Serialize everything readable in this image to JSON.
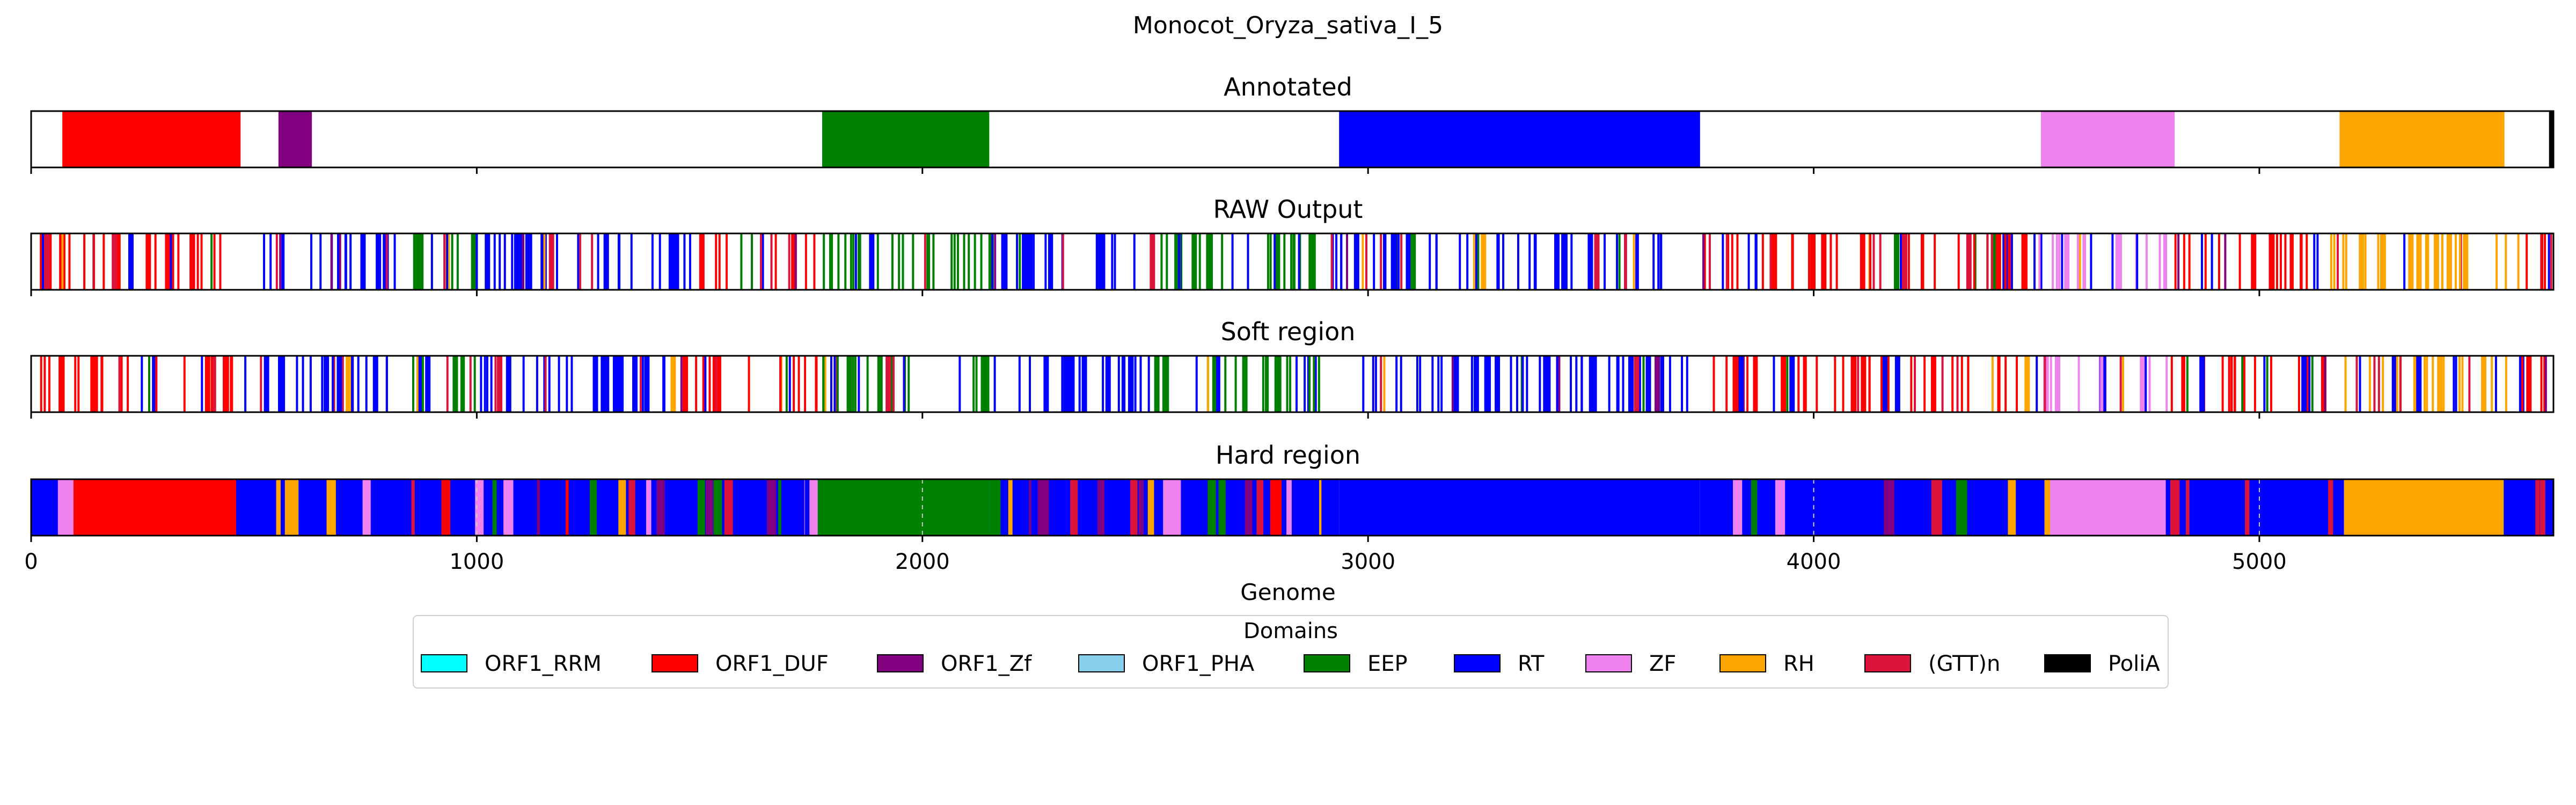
{
  "chart_data": {
    "type": "bar",
    "title": "Monocot_Oryza_sativa_I_5",
    "xlabel": "Genome",
    "xlim": [
      0,
      5660
    ],
    "xticks": [
      0,
      1000,
      2000,
      3000,
      4000,
      5000
    ],
    "xtick_labels": [
      "0",
      "1000",
      "2000",
      "3000",
      "4000",
      "5000"
    ],
    "grid": false,
    "legend": {
      "title": "Domains",
      "placement": "bottom-center",
      "items": [
        {
          "name": "ORF1_RRM",
          "color": "#00ffff"
        },
        {
          "name": "ORF1_DUF",
          "color": "#ff0000"
        },
        {
          "name": "ORF1_Zf",
          "color": "#800080"
        },
        {
          "name": "ORF1_PHA",
          "color": "#87ceeb"
        },
        {
          "name": "EEP",
          "color": "#008000"
        },
        {
          "name": "RT",
          "color": "#0000ff"
        },
        {
          "name": "ZF",
          "color": "#ee82ee"
        },
        {
          "name": "RH",
          "color": "#ffa500"
        },
        {
          "name": "(GTT)n",
          "color": "#dc143c"
        },
        {
          "name": "PoliA",
          "color": "#000000"
        }
      ]
    },
    "tracks": [
      {
        "title": "Annotated",
        "mode": "segments",
        "segments": [
          {
            "domain": "ORF1_DUF",
            "start": 70,
            "end": 470
          },
          {
            "domain": "ORF1_Zf",
            "start": 555,
            "end": 630
          },
          {
            "domain": "EEP",
            "start": 1775,
            "end": 2150
          },
          {
            "domain": "RT",
            "start": 2935,
            "end": 3745
          },
          {
            "domain": "ZF",
            "start": 4510,
            "end": 4810
          },
          {
            "domain": "RH",
            "start": 5180,
            "end": 5550
          },
          {
            "domain": "PoliA",
            "start": 5650,
            "end": 5660
          }
        ]
      },
      {
        "title": "RAW Output",
        "mode": "lines",
        "segments": [
          {
            "domain": "ORF1_DUF",
            "start": 10,
            "end": 470
          },
          {
            "domain": "RT",
            "start": 470,
            "end": 810
          },
          {
            "domain": "EEP",
            "start": 810,
            "end": 1000
          },
          {
            "domain": "RT",
            "start": 1000,
            "end": 1460
          },
          {
            "domain": "ORF1_DUF",
            "start": 1460,
            "end": 1760
          },
          {
            "domain": "EEP",
            "start": 1760,
            "end": 2150
          },
          {
            "domain": "RT",
            "start": 2150,
            "end": 2520
          },
          {
            "domain": "EEP",
            "start": 2520,
            "end": 2910
          },
          {
            "domain": "RT",
            "start": 2910,
            "end": 3750
          },
          {
            "domain": "ORF1_DUF",
            "start": 3750,
            "end": 4500
          },
          {
            "domain": "ZF",
            "start": 4500,
            "end": 4800
          },
          {
            "domain": "ORF1_DUF",
            "start": 4800,
            "end": 5150
          },
          {
            "domain": "RH",
            "start": 5150,
            "end": 5560
          },
          {
            "domain": "ORF1_DUF",
            "start": 5560,
            "end": 5660
          }
        ]
      },
      {
        "title": "Soft region",
        "mode": "lines",
        "segments": [
          {
            "domain": "ORF1_DUF",
            "start": 10,
            "end": 470
          },
          {
            "domain": "RT",
            "start": 470,
            "end": 810
          },
          {
            "domain": "EEP",
            "start": 810,
            "end": 1000
          },
          {
            "domain": "RT",
            "start": 1000,
            "end": 1460
          },
          {
            "domain": "ORF1_DUF",
            "start": 1460,
            "end": 1760
          },
          {
            "domain": "EEP",
            "start": 1760,
            "end": 2150
          },
          {
            "domain": "RT",
            "start": 2150,
            "end": 2520
          },
          {
            "domain": "EEP",
            "start": 2520,
            "end": 2910
          },
          {
            "domain": "RT",
            "start": 2910,
            "end": 3750
          },
          {
            "domain": "ORF1_DUF",
            "start": 3750,
            "end": 4500
          },
          {
            "domain": "ZF",
            "start": 4500,
            "end": 4800
          },
          {
            "domain": "ORF1_DUF",
            "start": 4800,
            "end": 5150
          },
          {
            "domain": "RH",
            "start": 5150,
            "end": 5560
          },
          {
            "domain": "ORF1_DUF",
            "start": 5560,
            "end": 5660
          }
        ]
      },
      {
        "title": "Hard region",
        "mode": "segments",
        "segments": [
          {
            "domain": "RT",
            "start": 0,
            "end": 90
          },
          {
            "domain": "ZF",
            "start": 60,
            "end": 95
          },
          {
            "domain": "ORF1_DUF",
            "start": 95,
            "end": 460
          },
          {
            "domain": "RT",
            "start": 460,
            "end": 550
          },
          {
            "domain": "RH",
            "start": 550,
            "end": 600
          },
          {
            "domain": "RT",
            "start": 600,
            "end": 1000
          },
          {
            "domain": "RT",
            "start": 1000,
            "end": 1760
          },
          {
            "domain": "ZF",
            "start": 1735,
            "end": 1765
          },
          {
            "domain": "EEP",
            "start": 1765,
            "end": 2150
          },
          {
            "domain": "RT",
            "start": 2150,
            "end": 2600
          },
          {
            "domain": "ZF",
            "start": 2540,
            "end": 2580
          },
          {
            "domain": "RT",
            "start": 2600,
            "end": 2935
          },
          {
            "domain": "RT",
            "start": 2935,
            "end": 3745
          },
          {
            "domain": "RT",
            "start": 3745,
            "end": 4530
          },
          {
            "domain": "ZF",
            "start": 4530,
            "end": 4790
          },
          {
            "domain": "RT",
            "start": 4790,
            "end": 5190
          },
          {
            "domain": "RH",
            "start": 5190,
            "end": 5540
          },
          {
            "domain": "RT",
            "start": 5540,
            "end": 5660
          }
        ]
      }
    ]
  }
}
